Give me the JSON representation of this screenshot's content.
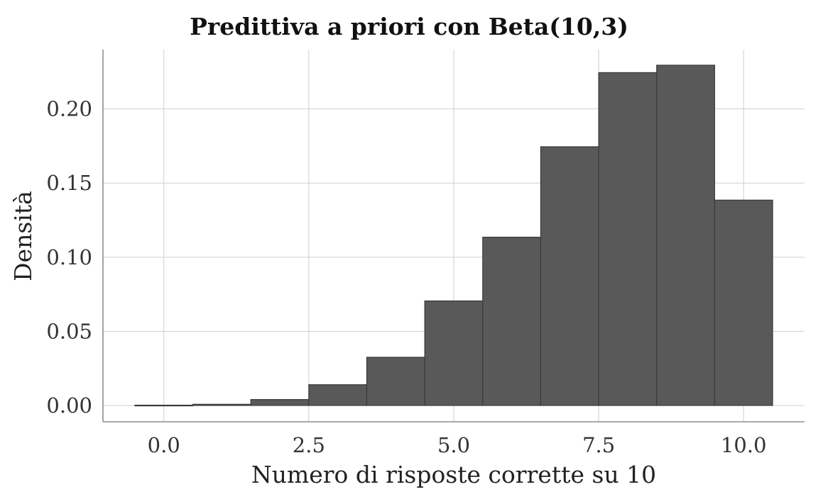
{
  "chart_data": {
    "type": "bar",
    "title": "Predittiva a priori con Beta(10,3)",
    "xlabel": "Numero di risposte corrette su 10",
    "ylabel": "Densità",
    "bin_width": 1,
    "x": [
      0,
      1,
      2,
      3,
      4,
      5,
      6,
      7,
      8,
      9,
      10
    ],
    "values": [
      0.0002,
      0.0008,
      0.004,
      0.014,
      0.0325,
      0.0705,
      0.1135,
      0.1745,
      0.2245,
      0.2295,
      0.1385
    ],
    "xlim": [
      -1.05,
      11.05
    ],
    "ylim": [
      -0.011,
      0.24
    ],
    "xticks": [
      0,
      2.5,
      5,
      7.5,
      10
    ],
    "xtick_labels": [
      "0.0",
      "2.5",
      "5.0",
      "7.5",
      "10.0"
    ],
    "yticks": [
      0,
      0.05,
      0.1,
      0.15,
      0.2
    ],
    "ytick_labels": [
      "0.00",
      "0.05",
      "0.10",
      "0.15",
      "0.20"
    ],
    "bar_color": "#595959",
    "grid": true,
    "legend": "none"
  }
}
